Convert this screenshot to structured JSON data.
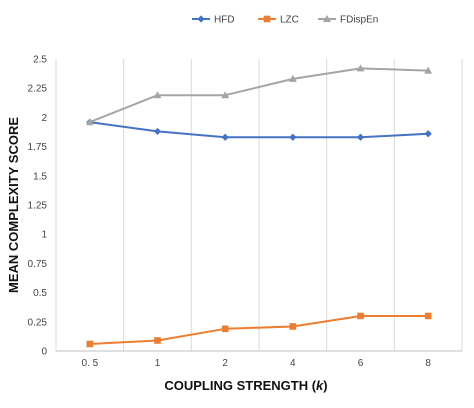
{
  "chart_data": {
    "type": "line",
    "categories": [
      "0.5",
      "1",
      "2",
      "4",
      "6",
      "8"
    ],
    "series": [
      {
        "name": "HFD",
        "values": [
          1.96,
          1.88,
          1.83,
          1.83,
          1.83,
          1.86
        ],
        "color": "#4472C4",
        "marker": "diamond"
      },
      {
        "name": "LZC",
        "values": [
          0.06,
          0.09,
          0.19,
          0.21,
          0.3,
          0.3
        ],
        "color": "#ED7D31",
        "marker": "square"
      },
      {
        "name": "FDispEn",
        "values": [
          1.96,
          2.19,
          2.19,
          2.33,
          2.42,
          2.4
        ],
        "color": "#A5A5A5",
        "marker": "triangle"
      }
    ],
    "xtick_labels": [
      "0. 5",
      "1",
      "2",
      "4",
      "6",
      "8"
    ],
    "ytick_labels": [
      "0",
      "0.25",
      "0.5",
      "0.75",
      "1",
      "1.25",
      "1.5",
      "1.75",
      "2",
      "2.25",
      "2.5"
    ],
    "xlabel": "COUPLING STRENGTH (k)",
    "ylabel": "MEAN COMPLEXITY SCORE",
    "ylim": [
      0,
      2.5
    ],
    "yticks": [
      0,
      0.25,
      0.5,
      0.75,
      1,
      1.25,
      1.5,
      1.75,
      2,
      2.25,
      2.5
    ],
    "grid": "vertical",
    "legend": "top-right"
  }
}
